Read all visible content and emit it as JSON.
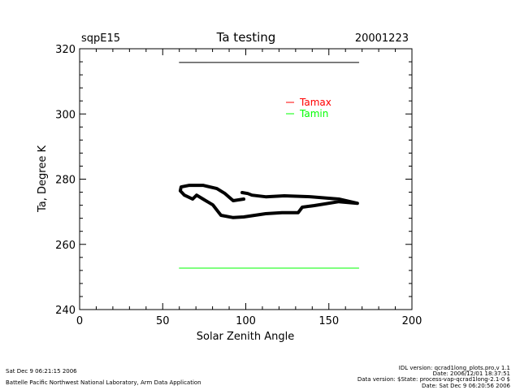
{
  "header": {
    "site": "sqpE15",
    "title": "Ta testing",
    "date": "20001223"
  },
  "chart_data": {
    "type": "line",
    "title": "Ta testing",
    "xlabel": "Solar Zenith Angle",
    "ylabel": "Ta, Degree K",
    "xlim": [
      0,
      200
    ],
    "ylim": [
      240,
      320
    ],
    "xticks": [
      0,
      50,
      100,
      150,
      200
    ],
    "yticks": [
      240,
      260,
      280,
      300,
      320
    ],
    "legend": {
      "placement": "top-right",
      "entries": [
        {
          "label": "Tamax",
          "color": "#ff0000"
        },
        {
          "label": "Tamin",
          "color": "#00ff00"
        }
      ]
    },
    "series": [
      {
        "name": "Tamax",
        "color": "#ff0000",
        "line_color": "#000000",
        "x": [
          60,
          168
        ],
        "y": [
          315.8,
          315.8
        ]
      },
      {
        "name": "Tamin",
        "color": "#00ff00",
        "x": [
          60,
          168
        ],
        "y": [
          252.7,
          252.7
        ]
      },
      {
        "name": "Ta",
        "color": "#000000",
        "x": [
          98.8,
          92.4,
          87.5,
          82.6,
          74.3,
          66.0,
          61.1,
          60.6,
          63.1,
          68.0,
          70.4,
          74.3,
          80.2,
          83.1,
          85.1,
          92.4,
          98.8,
          112.0,
          121.8,
          131.5,
          134.0,
          141.3,
          156.0,
          167.2,
          156.0,
          139.4,
          123.2,
          112.0,
          103.7,
          101.2,
          97.8
        ],
        "y": [
          273.9,
          273.4,
          275.6,
          277.1,
          278.1,
          278.1,
          277.6,
          276.4,
          275.1,
          273.9,
          275.1,
          273.9,
          272.1,
          270.2,
          268.9,
          268.2,
          268.4,
          269.4,
          269.7,
          269.7,
          271.4,
          271.9,
          273.1,
          272.6,
          273.9,
          274.6,
          274.9,
          274.6,
          275.1,
          275.6,
          275.9
        ]
      }
    ]
  },
  "footer": {
    "left_line1": "Sat Dec  9 06:21:15 2006",
    "left_line2": "Battelle Pacific Northwest National Laboratory, Arm Data Application",
    "right_line1": "IDL version: qcrad1long_plots.pro,v 1.1",
    "right_line2": "Date: 2006/12/01 18:37:51",
    "right_line3": "Data version: $State: process-vap-qcrad1long-2.1-0 $",
    "right_line4": "Date: Sat Dec  9 06:20:56 2006"
  }
}
